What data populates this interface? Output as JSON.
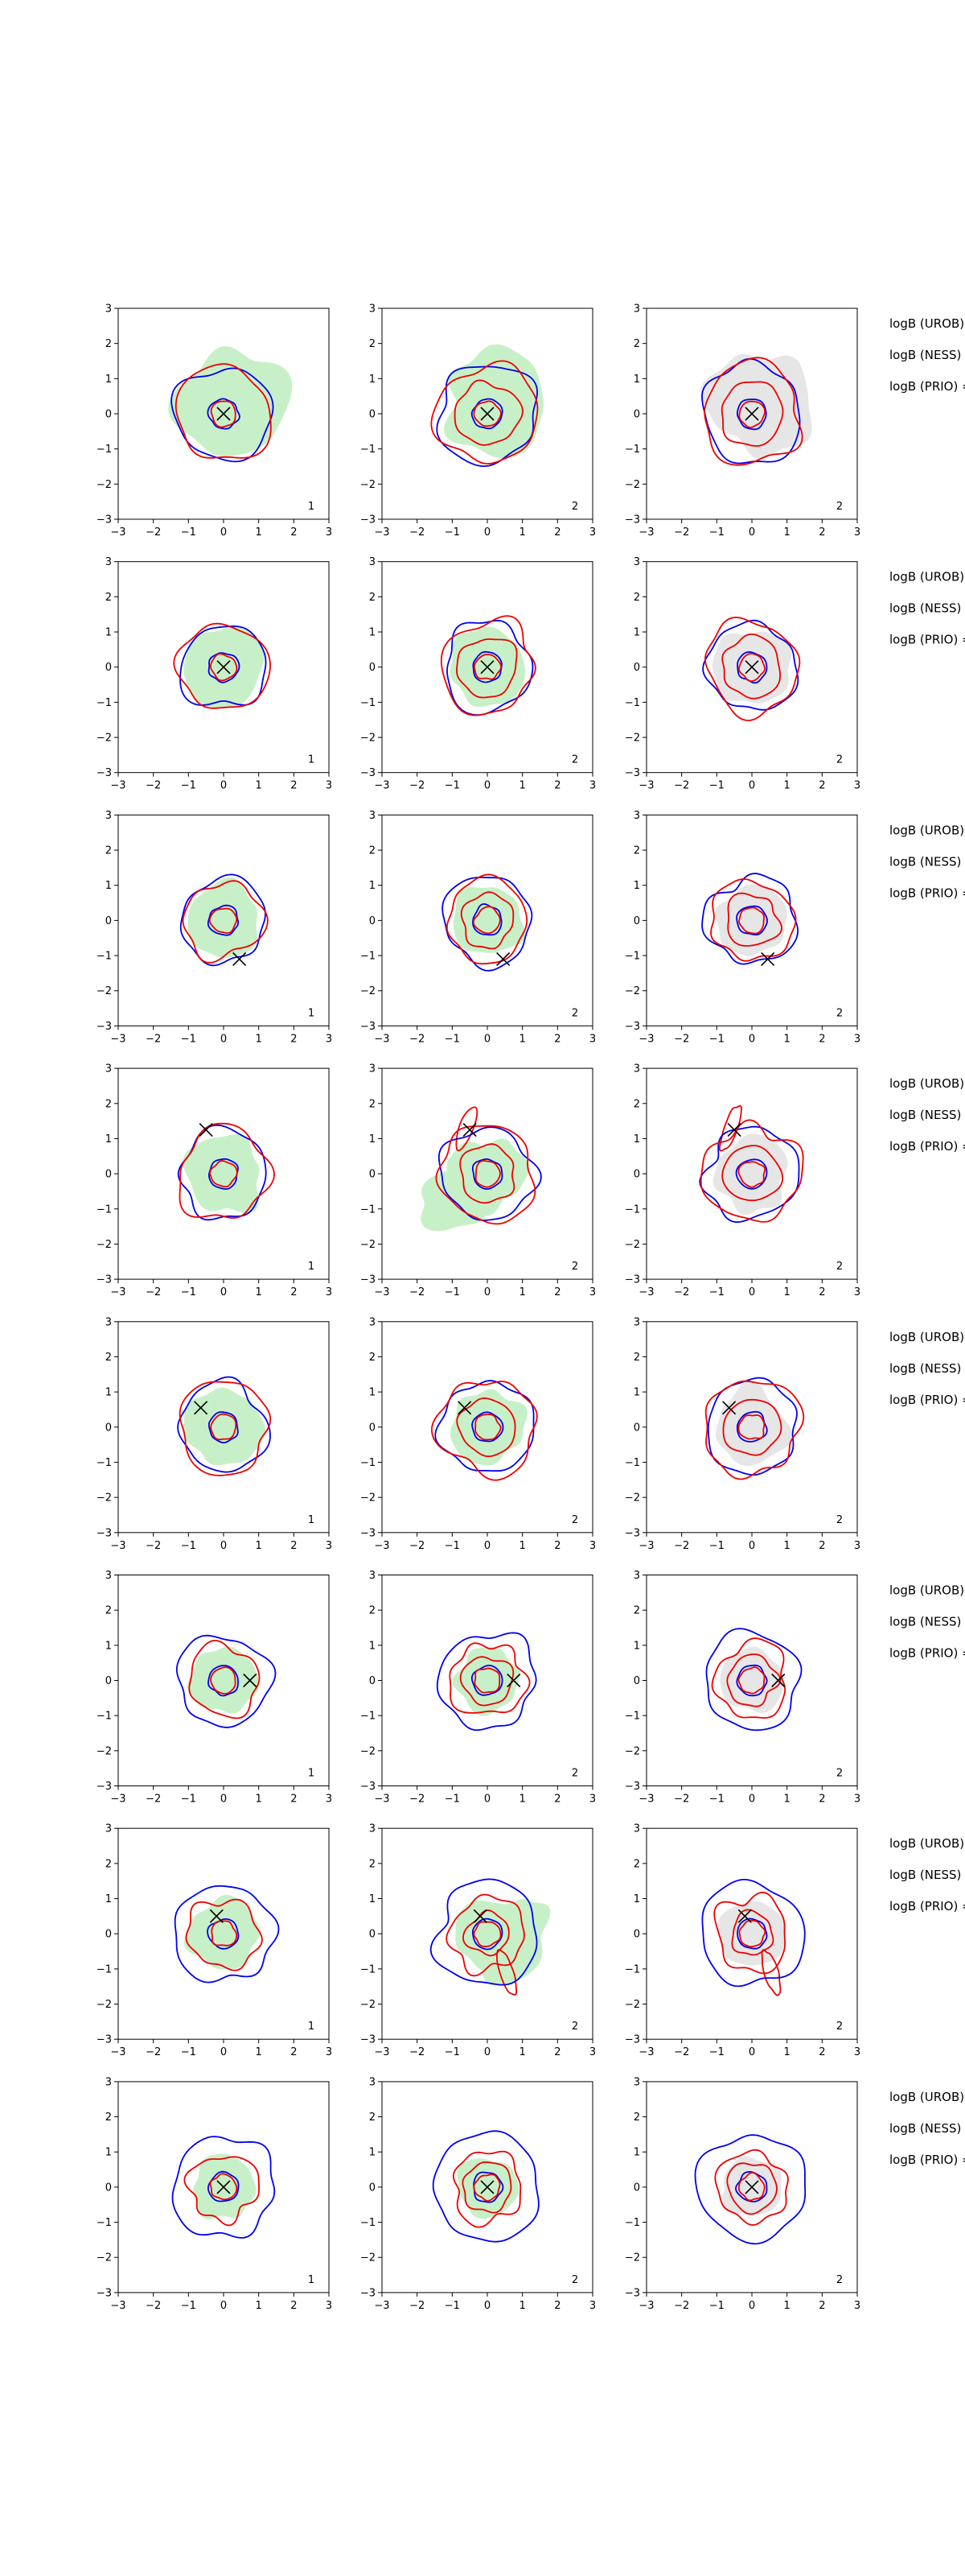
{
  "chart_data": {
    "type": "contour-grid",
    "rows": 8,
    "columns": 3,
    "axis": {
      "xlim": [
        -3,
        3
      ],
      "ylim": [
        -3,
        3
      ],
      "ticks": [
        -3,
        -2,
        -1,
        0,
        1,
        2,
        3
      ]
    },
    "colors": {
      "fill": "#c8f0c8",
      "fill_gray": "#e6e6e6",
      "blue": "#0000ee",
      "red": "#ee0000",
      "marker": "#000000"
    },
    "panel_labels": [
      "1",
      "2",
      "2"
    ],
    "row_texts": [
      "logB (UROB)",
      "logB (NESS) =",
      "logB (PRIO) ="
    ],
    "markers": [
      [
        {
          "x": 0.0,
          "y": 0.0
        },
        {
          "x": 0.0,
          "y": 0.0
        },
        {
          "x": 0.0,
          "y": 0.0
        }
      ],
      [
        {
          "x": 0.0,
          "y": 0.0
        },
        {
          "x": 0.0,
          "y": 0.0
        },
        {
          "x": 0.0,
          "y": 0.0
        }
      ],
      [
        {
          "x": 0.45,
          "y": -1.1
        },
        {
          "x": 0.45,
          "y": -1.1
        },
        {
          "x": 0.45,
          "y": -1.1
        }
      ],
      [
        {
          "x": -0.5,
          "y": 1.25
        },
        {
          "x": -0.5,
          "y": 1.25
        },
        {
          "x": -0.5,
          "y": 1.25
        }
      ],
      [
        {
          "x": -0.65,
          "y": 0.55
        },
        {
          "x": -0.65,
          "y": 0.55
        },
        {
          "x": -0.65,
          "y": 0.55
        }
      ],
      [
        {
          "x": 0.75,
          "y": 0.0
        },
        {
          "x": 0.75,
          "y": 0.0
        },
        {
          "x": 0.75,
          "y": 0.0
        }
      ],
      [
        {
          "x": -0.2,
          "y": 0.5
        },
        {
          "x": -0.2,
          "y": 0.5
        },
        {
          "x": -0.2,
          "y": 0.5
        }
      ],
      [
        {
          "x": 0.0,
          "y": 0.0
        },
        {
          "x": 0.0,
          "y": 0.0
        },
        {
          "x": 0.0,
          "y": 0.0
        }
      ]
    ]
  }
}
